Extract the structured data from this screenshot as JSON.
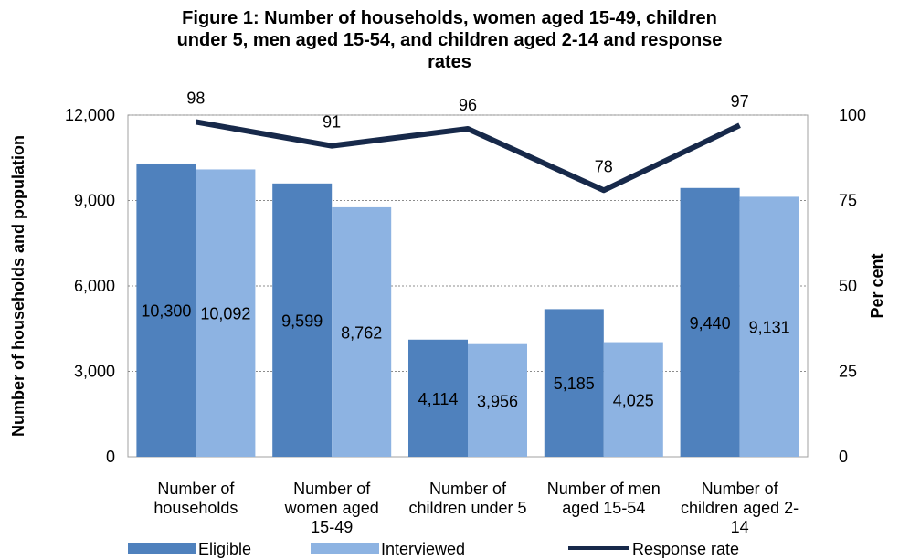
{
  "chart_data": {
    "type": "bar",
    "title_lines": [
      "Figure 1: Number of households, women aged 15-49, children",
      "under 5, men aged 15-54, and children aged 2-14 and response",
      "rates"
    ],
    "categories": [
      [
        "Number of",
        "households"
      ],
      [
        "Number of",
        "women aged",
        "15-49"
      ],
      [
        "Number of",
        "children under 5"
      ],
      [
        "Number of men",
        "aged 15-54"
      ],
      [
        "Number of",
        "children aged 2-",
        "14"
      ]
    ],
    "series": [
      {
        "name": "Eligible",
        "type": "bar",
        "axis": "left",
        "color": "#4f81bd",
        "values": [
          10300,
          9599,
          4114,
          5185,
          9440
        ],
        "labels": [
          "10,300",
          "9,599",
          "4,114",
          "5,185",
          "9,440"
        ]
      },
      {
        "name": "Interviewed",
        "type": "bar",
        "axis": "left",
        "color": "#8db3e2",
        "values": [
          10092,
          8762,
          3956,
          4025,
          9131
        ],
        "labels": [
          "10,092",
          "8,762",
          "3,956",
          "4,025",
          "9,131"
        ]
      },
      {
        "name": "Response rate",
        "type": "line",
        "axis": "right",
        "color": "#17294a",
        "values": [
          98,
          91,
          96,
          78,
          97
        ],
        "labels": [
          "98",
          "91",
          "96",
          "78",
          "97"
        ]
      }
    ],
    "ylabel": "Number of households and population",
    "y2label": "Per cent",
    "ylim": [
      0,
      12000
    ],
    "y2lim": [
      0,
      100
    ],
    "yticks": [
      "0",
      "3,000",
      "6,000",
      "9,000",
      "12,000"
    ],
    "y2ticks": [
      "0",
      "25",
      "50",
      "75",
      "100"
    ],
    "grid": true,
    "legend_position": "bottom"
  }
}
